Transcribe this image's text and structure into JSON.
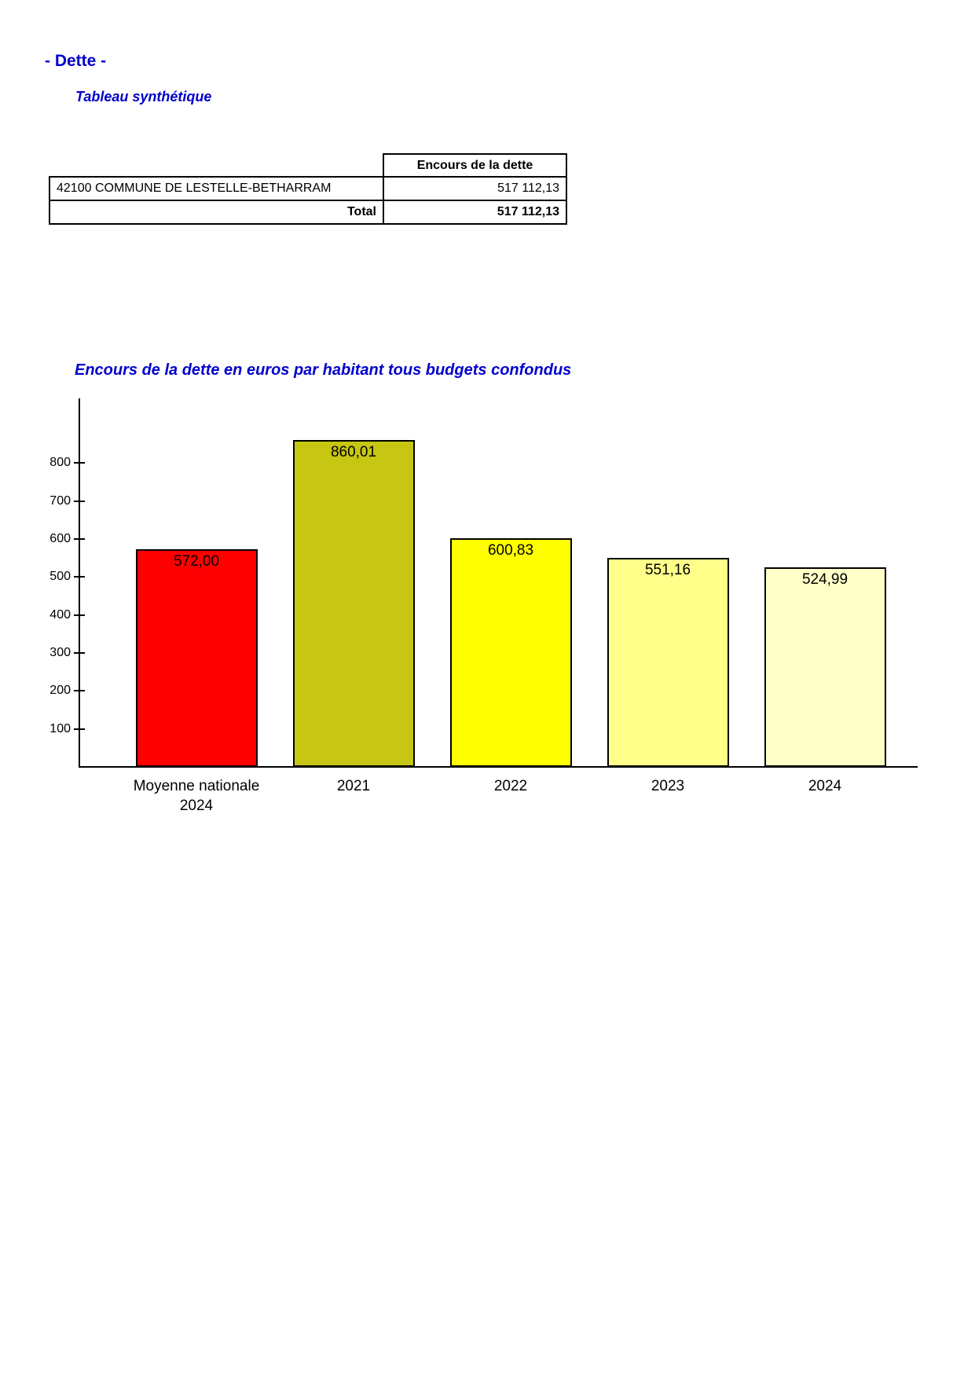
{
  "page": {
    "title": "- Dette -",
    "subtitle": "Tableau synthétique"
  },
  "table": {
    "header": "Encours de la dette",
    "rows": [
      {
        "label": "42100 COMMUNE DE LESTELLE-BETHARRAM",
        "value": "517 112,13"
      }
    ],
    "total": {
      "label": "Total",
      "value": "517 112,13"
    }
  },
  "chart_data": {
    "type": "bar",
    "title": "Encours de la dette en euros par habitant tous budgets confondus",
    "categories": [
      "Moyenne nationale\n2024",
      "2021",
      "2022",
      "2023",
      "2024"
    ],
    "values": [
      572.0,
      860.01,
      600.83,
      551.16,
      524.99
    ],
    "value_labels": [
      "572,00",
      "860,01",
      "600,83",
      "551,16",
      "524,99"
    ],
    "bar_colors": [
      "#FF0000",
      "#C6C613",
      "#FFFF00",
      "#FFFF8A",
      "#FFFFC8"
    ],
    "bar_border_color": "#000000",
    "xlabel": "",
    "ylabel": "",
    "y_ticks": [
      100,
      200,
      300,
      400,
      500,
      600,
      700,
      800
    ],
    "ylim": [
      0,
      970
    ],
    "grid": false,
    "legend": null
  },
  "colors": {
    "heading": "#0000CC",
    "chart_title": "#0000CC",
    "axis": "#000000"
  }
}
